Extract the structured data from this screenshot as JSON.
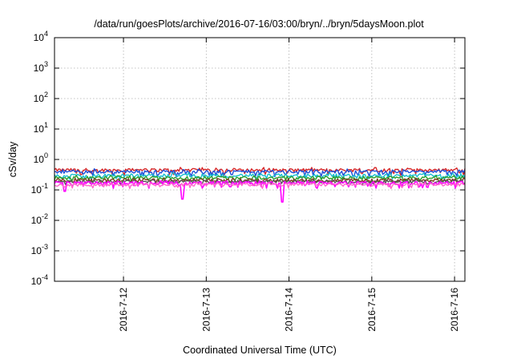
{
  "chart_data": {
    "type": "line",
    "title": "/data/run/goesPlots/archive/2016-07-16/03:00/bryn/../bryn/5daysMoon.plot",
    "xlabel": "Coordinated Universal Time (UTC)",
    "ylabel": "cSv/day",
    "y_scale": "log",
    "ylim": [
      0.0001,
      10000
    ],
    "xlim": [
      "2016-07-11 04:00",
      "2016-07-16 03:00"
    ],
    "y_ticks": [
      {
        "value": 0.0001,
        "base": "10",
        "exp": "-4"
      },
      {
        "value": 0.001,
        "base": "10",
        "exp": "-3"
      },
      {
        "value": 0.01,
        "base": "10",
        "exp": "-2"
      },
      {
        "value": 0.1,
        "base": "10",
        "exp": "-1"
      },
      {
        "value": 1,
        "base": "10",
        "exp": "0"
      },
      {
        "value": 10,
        "base": "10",
        "exp": "1"
      },
      {
        "value": 100,
        "base": "10",
        "exp": "2"
      },
      {
        "value": 1000,
        "base": "10",
        "exp": "3"
      },
      {
        "value": 10000,
        "base": "10",
        "exp": "4"
      }
    ],
    "x_ticks": [
      {
        "value": "2016-07-12 00:00",
        "label": "2016-7-12"
      },
      {
        "value": "2016-07-13 00:00",
        "label": "2016-7-13"
      },
      {
        "value": "2016-07-14 00:00",
        "label": "2016-7-14"
      },
      {
        "value": "2016-07-15 00:00",
        "label": "2016-7-15"
      },
      {
        "value": "2016-07-16 00:00",
        "label": "2016-7-16"
      }
    ],
    "grid": true,
    "legend": "none",
    "series": [
      {
        "color": "#d62728",
        "level": 0.45,
        "low": 0.3,
        "high": 0.55,
        "dip_events": 40,
        "spikes": []
      },
      {
        "color": "#1f4fd8",
        "level": 0.4,
        "low": 0.27,
        "high": 0.5,
        "dip_events": 40,
        "spikes": []
      },
      {
        "color": "#17becf",
        "level": 0.3,
        "low": 0.22,
        "high": 0.38,
        "dip_events": 35,
        "spikes": []
      },
      {
        "color": "#2ca02c",
        "level": 0.25,
        "low": 0.2,
        "high": 0.3,
        "dip_events": 30,
        "spikes": []
      },
      {
        "color": "#7f3f1f",
        "level": 0.21,
        "low": 0.17,
        "high": 0.25,
        "dip_events": 30,
        "spikes": []
      },
      {
        "color": "#555555",
        "level": 0.19,
        "low": 0.15,
        "high": 0.22,
        "dip_events": 30,
        "spikes": []
      },
      {
        "color": "#ff00ff",
        "level": 0.17,
        "low": 0.11,
        "high": 0.2,
        "dip_events": 45,
        "spikes": [
          {
            "x": "2016-07-12 17:00",
            "y": 0.05
          },
          {
            "x": "2016-07-13 22:00",
            "y": 0.04
          },
          {
            "x": "2016-07-11 07:00",
            "y": 0.09
          }
        ]
      },
      {
        "color": "#ff66cc",
        "level": 0.15,
        "low": 0.11,
        "high": 0.18,
        "dip_events": 30,
        "spikes": []
      }
    ]
  }
}
